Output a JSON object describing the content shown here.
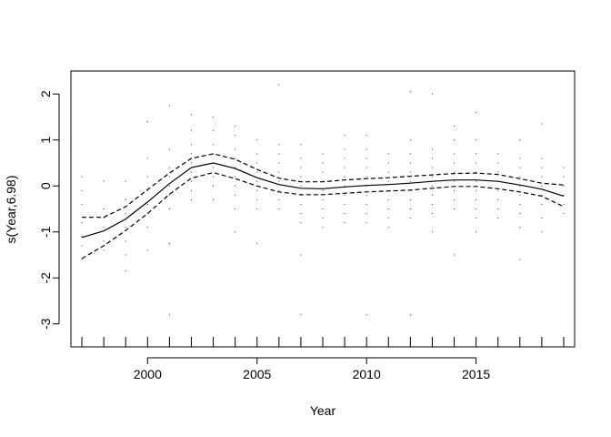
{
  "chart_data": {
    "type": "line",
    "xlabel": "Year",
    "ylabel": "s(Year,6.98)",
    "xlim": [
      1996.5,
      2019.5
    ],
    "ylim": [
      -3.5,
      2.5
    ],
    "xticks": [
      2000,
      2005,
      2010,
      2015
    ],
    "xtick_labels": [
      "2000",
      "2005",
      "2010",
      "2015"
    ],
    "yticks": [
      -3,
      -2,
      -1,
      0,
      1,
      2
    ],
    "ytick_labels": [
      "-3",
      "-2",
      "-1",
      "0",
      "1",
      "2"
    ],
    "grid": false,
    "rug_years": [
      1997,
      1998,
      1999,
      2000,
      2001,
      2002,
      2003,
      2004,
      2005,
      2006,
      2007,
      2008,
      2009,
      2010,
      2011,
      2012,
      2013,
      2014,
      2015,
      2016,
      2017,
      2018,
      2019
    ],
    "series": [
      {
        "role": "fit",
        "style": "solid",
        "x": [
          1997,
          1998,
          1999,
          2000,
          2001,
          2002,
          2003,
          2004,
          2005,
          2006,
          2007,
          2008,
          2009,
          2010,
          2011,
          2012,
          2013,
          2014,
          2015,
          2016,
          2017,
          2018,
          2019
        ],
        "y": [
          -1.12,
          -0.98,
          -0.72,
          -0.35,
          0.05,
          0.4,
          0.5,
          0.38,
          0.18,
          0.03,
          -0.05,
          -0.06,
          -0.02,
          0.01,
          0.03,
          0.06,
          0.1,
          0.13,
          0.13,
          0.1,
          0.02,
          -0.07,
          -0.22
        ]
      },
      {
        "role": "upper",
        "style": "dashed",
        "x": [
          1997,
          1998,
          1999,
          2000,
          2001,
          2002,
          2003,
          2004,
          2005,
          2006,
          2007,
          2008,
          2009,
          2010,
          2011,
          2012,
          2013,
          2014,
          2015,
          2016,
          2017,
          2018,
          2019
        ],
        "y": [
          -0.68,
          -0.68,
          -0.45,
          -0.08,
          0.28,
          0.6,
          0.7,
          0.58,
          0.36,
          0.17,
          0.09,
          0.09,
          0.13,
          0.16,
          0.18,
          0.21,
          0.24,
          0.27,
          0.28,
          0.25,
          0.16,
          0.06,
          0.02
        ]
      },
      {
        "role": "lower",
        "style": "dashed",
        "x": [
          1997,
          1998,
          1999,
          2000,
          2001,
          2002,
          2003,
          2004,
          2005,
          2006,
          2007,
          2008,
          2009,
          2010,
          2011,
          2012,
          2013,
          2014,
          2015,
          2016,
          2017,
          2018,
          2019
        ],
        "y": [
          -1.58,
          -1.3,
          -0.97,
          -0.6,
          -0.18,
          0.17,
          0.29,
          0.16,
          0.0,
          -0.13,
          -0.19,
          -0.19,
          -0.16,
          -0.13,
          -0.11,
          -0.09,
          -0.05,
          -0.01,
          -0.01,
          -0.06,
          -0.13,
          -0.22,
          -0.45
        ]
      }
    ],
    "residuals": [
      {
        "x": 1997,
        "y": [
          0.2,
          -0.1,
          -0.4,
          -0.8,
          -1.1,
          -1.3,
          -1.6
        ]
      },
      {
        "x": 1998,
        "y": [
          0.1,
          -0.5,
          -0.7,
          -0.9,
          -1.2,
          -1.4
        ]
      },
      {
        "x": 1999,
        "y": [
          0.1,
          -0.3,
          -0.6,
          -0.9,
          -1.2,
          -1.5,
          -1.85
        ]
      },
      {
        "x": 2000,
        "y": [
          1.4,
          0.6,
          0.2,
          -0.1,
          -0.4,
          -0.6,
          -0.9,
          -1.4
        ]
      },
      {
        "x": 2001,
        "y": [
          1.75,
          0.8,
          0.4,
          0.2,
          0.0,
          -0.2,
          -0.5,
          -1.25,
          -2.8
        ]
      },
      {
        "x": 2002,
        "y": [
          1.55,
          1.2,
          0.9,
          0.7,
          0.5,
          0.3,
          0.1,
          -0.1,
          -0.3
        ]
      },
      {
        "x": 2003,
        "y": [
          1.5,
          1.2,
          0.9,
          0.7,
          0.5,
          0.4,
          0.2,
          0.0,
          -0.3
        ]
      },
      {
        "x": 2004,
        "y": [
          1.3,
          1.1,
          0.8,
          0.6,
          0.4,
          0.2,
          0.0,
          -0.2,
          -0.5,
          -1.0
        ]
      },
      {
        "x": 2005,
        "y": [
          1.0,
          0.7,
          0.5,
          0.3,
          0.1,
          -0.1,
          -0.3,
          -0.5,
          -1.25
        ]
      },
      {
        "x": 2006,
        "y": [
          2.2,
          0.9,
          0.7,
          0.5,
          0.3,
          0.1,
          -0.1,
          -0.3,
          -0.5
        ]
      },
      {
        "x": 2007,
        "y": [
          0.9,
          0.6,
          0.4,
          0.2,
          0.0,
          -0.2,
          -0.4,
          -0.6,
          -0.8,
          -1.5,
          -2.8
        ]
      },
      {
        "x": 2008,
        "y": [
          0.7,
          0.5,
          0.3,
          0.1,
          -0.1,
          -0.3,
          -0.5,
          -0.7,
          -0.9
        ]
      },
      {
        "x": 2009,
        "y": [
          1.1,
          0.8,
          0.6,
          0.4,
          0.2,
          0.0,
          -0.2,
          -0.4,
          -0.6,
          -0.8
        ]
      },
      {
        "x": 2010,
        "y": [
          1.1,
          0.8,
          0.6,
          0.4,
          0.2,
          0.0,
          -0.2,
          -0.4,
          -0.6,
          -0.8,
          -2.8
        ]
      },
      {
        "x": 2011,
        "y": [
          0.7,
          0.5,
          0.3,
          0.1,
          -0.1,
          -0.3,
          -0.5,
          -0.7,
          -0.9
        ]
      },
      {
        "x": 2012,
        "y": [
          2.05,
          1.0,
          0.7,
          0.5,
          0.3,
          0.1,
          -0.1,
          -0.3,
          -0.5,
          -0.7,
          -2.8
        ]
      },
      {
        "x": 2013,
        "y": [
          2.0,
          0.8,
          0.6,
          0.4,
          0.2,
          0.0,
          -0.2,
          -0.4,
          -0.6,
          -1.0
        ]
      },
      {
        "x": 2014,
        "y": [
          1.3,
          1.0,
          0.7,
          0.5,
          0.3,
          0.1,
          -0.1,
          -0.3,
          -0.5,
          -1.5
        ]
      },
      {
        "x": 2015,
        "y": [
          1.6,
          1.0,
          0.7,
          0.5,
          0.3,
          0.1,
          -0.1,
          -0.3,
          -0.5,
          -0.7,
          -1.0
        ]
      },
      {
        "x": 2016,
        "y": [
          0.7,
          0.5,
          0.3,
          0.1,
          -0.1,
          -0.3,
          -0.5,
          -0.7
        ]
      },
      {
        "x": 2017,
        "y": [
          1.0,
          0.6,
          0.4,
          0.2,
          0.0,
          -0.2,
          -0.4,
          -0.6,
          -0.9,
          -1.6
        ]
      },
      {
        "x": 2018,
        "y": [
          1.35,
          0.6,
          0.4,
          0.2,
          0.0,
          -0.2,
          -0.4,
          -0.7,
          -1.0
        ]
      },
      {
        "x": 2019,
        "y": [
          0.4,
          0.2,
          0.0,
          -0.2,
          -0.4,
          -0.6
        ]
      }
    ]
  }
}
